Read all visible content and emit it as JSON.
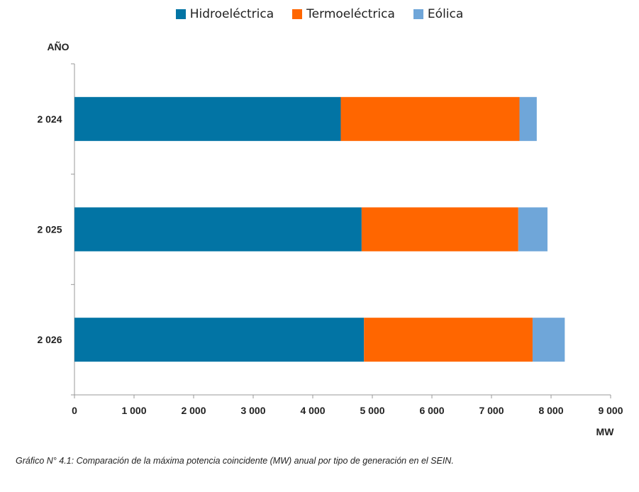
{
  "chart_data": {
    "type": "bar",
    "orientation": "horizontal",
    "stacked": true,
    "categories": [
      "2 024",
      "2 025",
      "2 026"
    ],
    "series": [
      {
        "name": "Hidroeléctrica",
        "color": "#0274a4",
        "values": [
          4470,
          4820,
          4860
        ]
      },
      {
        "name": "Termoeléctrica",
        "color": "#ff6600",
        "values": [
          3000,
          2630,
          2830
        ]
      },
      {
        "name": "Eólica",
        "color": "#6fa6d9",
        "values": [
          290,
          490,
          540
        ]
      }
    ],
    "ylabel": "AÑO",
    "xlabel": "MW",
    "xlim": [
      0,
      9000
    ],
    "x_ticks": [
      "0",
      "1 000",
      "2 000",
      "3 000",
      "4 000",
      "5 000",
      "6 000",
      "7 000",
      "8 000",
      "9 000"
    ],
    "x_tick_values": [
      0,
      1000,
      2000,
      3000,
      4000,
      5000,
      6000,
      7000,
      8000,
      9000
    ],
    "grid": false,
    "legend_position": "top-center"
  },
  "caption": "Gráfico N° 4.1: Comparación de la máxima potencia coincidente (MW) anual por tipo de generación en el SEIN."
}
